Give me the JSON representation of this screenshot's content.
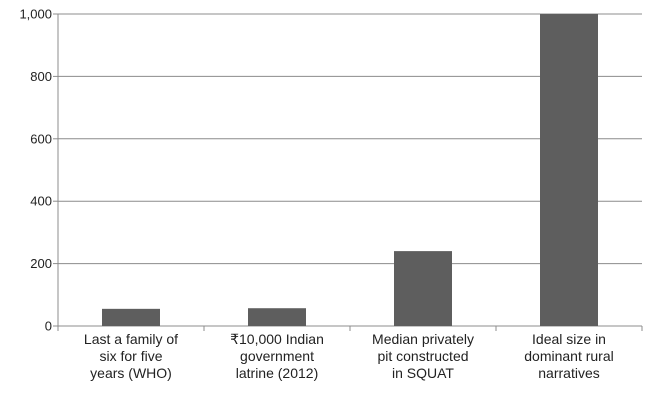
{
  "chart_data": {
    "type": "bar",
    "categories": [
      [
        "Last a family of",
        "six for five",
        "years (WHO)"
      ],
      [
        "₹10,000 Indian",
        "government",
        "latrine (2012)"
      ],
      [
        "Median privately",
        "pit constructed",
        "in SQUAT"
      ],
      [
        "Ideal size in",
        "dominant rural",
        "narratives"
      ]
    ],
    "values": [
      55,
      57,
      240,
      1000
    ],
    "ylim": [
      0,
      1000
    ],
    "yticks": [
      0,
      200,
      400,
      600,
      800,
      1000
    ],
    "ytick_labels": [
      "0",
      "200",
      "400",
      "600",
      "800",
      "1,000"
    ],
    "grid": true,
    "colors": {
      "bar": "#5e5e5e",
      "grid": "#8c8c8c",
      "axis": "#8c8c8c"
    }
  }
}
